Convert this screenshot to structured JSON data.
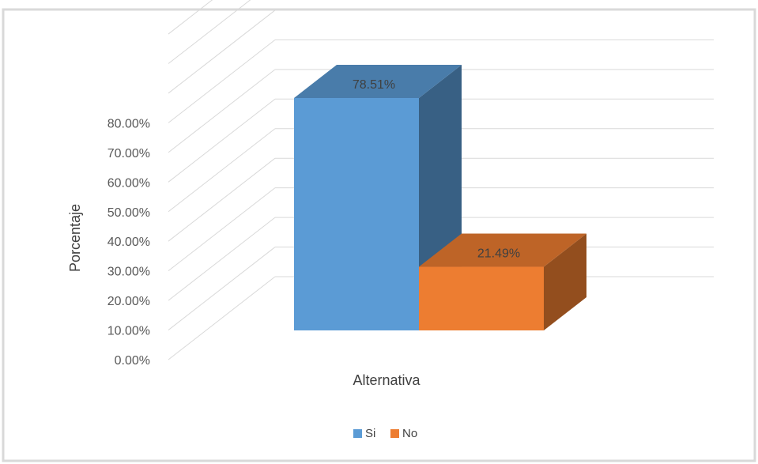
{
  "chart_data": {
    "type": "bar",
    "title": "",
    "xlabel": "Alternativa",
    "ylabel": "Porcentaje",
    "categories": [
      ""
    ],
    "series": [
      {
        "name": "Si",
        "values": [
          78.51
        ],
        "label": "78.51%",
        "color": "#5B9BD5"
      },
      {
        "name": "No",
        "values": [
          21.49
        ],
        "label": "21.49%",
        "color": "#ED7D31"
      }
    ],
    "ylim": [
      0,
      80
    ],
    "y_ticks": [
      {
        "value": 0,
        "label": "0.00%"
      },
      {
        "value": 10,
        "label": "10.00%"
      },
      {
        "value": 20,
        "label": "20.00%"
      },
      {
        "value": 30,
        "label": "30.00%"
      },
      {
        "value": 40,
        "label": "40.00%"
      },
      {
        "value": 50,
        "label": "50.00%"
      },
      {
        "value": 60,
        "label": "60.00%"
      },
      {
        "value": 70,
        "label": "70.00%"
      },
      {
        "value": 80,
        "label": "80.00%"
      }
    ],
    "grid": true,
    "style": "3d-column",
    "legend_position": "bottom"
  }
}
